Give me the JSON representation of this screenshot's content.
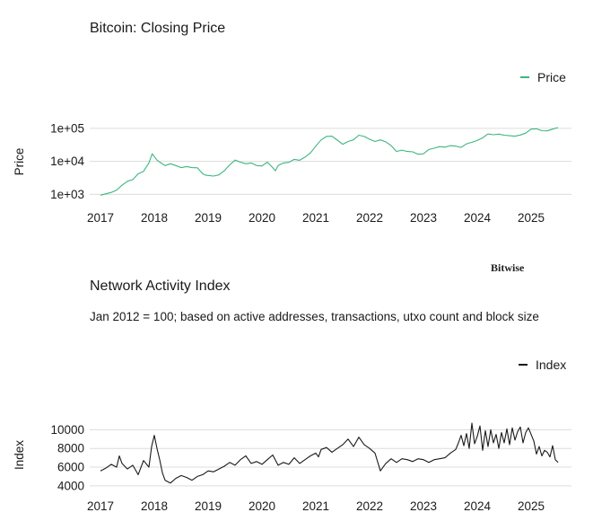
{
  "brand": "Bitwise",
  "chart_data": [
    {
      "type": "line",
      "title": "Bitcoin: Closing Price",
      "ylabel": "Price",
      "xlabel": "",
      "y_scale": "log",
      "ylim": [
        800,
        120000
      ],
      "xlim": [
        2016.8,
        2025.75
      ],
      "y_ticks": [
        1000,
        10000,
        100000
      ],
      "y_tick_labels": [
        "1e+03",
        "1e+04",
        "1e+05"
      ],
      "x_ticks": [
        2017,
        2018,
        2019,
        2020,
        2021,
        2022,
        2023,
        2024,
        2025
      ],
      "x_tick_labels": [
        "2017",
        "2018",
        "2019",
        "2020",
        "2021",
        "2022",
        "2023",
        "2024",
        "2025"
      ],
      "grid": "horizontal",
      "legend": "top-right",
      "series": [
        {
          "name": "Price",
          "color": "#3cb680",
          "x": [
            2017.0,
            2017.1,
            2017.2,
            2017.3,
            2017.4,
            2017.5,
            2017.6,
            2017.7,
            2017.8,
            2017.9,
            2017.96,
            2018.0,
            2018.05,
            2018.1,
            2018.2,
            2018.3,
            2018.4,
            2018.5,
            2018.6,
            2018.7,
            2018.8,
            2018.9,
            2018.96,
            2019.1,
            2019.2,
            2019.3,
            2019.4,
            2019.5,
            2019.6,
            2019.7,
            2019.8,
            2019.9,
            2020.0,
            2020.1,
            2020.2,
            2020.25,
            2020.3,
            2020.4,
            2020.5,
            2020.6,
            2020.7,
            2020.8,
            2020.9,
            2021.0,
            2021.1,
            2021.2,
            2021.3,
            2021.4,
            2021.5,
            2021.6,
            2021.7,
            2021.8,
            2021.9,
            2022.0,
            2022.1,
            2022.2,
            2022.3,
            2022.4,
            2022.5,
            2022.6,
            2022.7,
            2022.8,
            2022.9,
            2023.0,
            2023.1,
            2023.2,
            2023.3,
            2023.4,
            2023.5,
            2023.6,
            2023.7,
            2023.8,
            2023.9,
            2024.0,
            2024.1,
            2024.2,
            2024.3,
            2024.4,
            2024.5,
            2024.6,
            2024.7,
            2024.8,
            2024.9,
            2025.0,
            2025.1,
            2025.2,
            2025.3,
            2025.4,
            2025.5
          ],
          "values": [
            950,
            1050,
            1150,
            1350,
            1900,
            2500,
            2800,
            4200,
            5000,
            9000,
            17000,
            14000,
            11000,
            9500,
            7500,
            8500,
            7500,
            6500,
            7000,
            6500,
            6400,
            4200,
            3800,
            3600,
            3900,
            5200,
            7800,
            11000,
            9500,
            8500,
            9000,
            7500,
            7300,
            9500,
            6500,
            5200,
            7500,
            9000,
            9400,
            11500,
            10800,
            13500,
            18000,
            29000,
            45000,
            57000,
            58000,
            44000,
            33000,
            40000,
            45000,
            62000,
            57000,
            47000,
            40000,
            45000,
            39000,
            30000,
            20000,
            22000,
            20000,
            19500,
            16500,
            17000,
            23000,
            25000,
            28000,
            27000,
            30000,
            29000,
            26500,
            34000,
            38000,
            43000,
            52000,
            68000,
            64000,
            67000,
            62000,
            60000,
            58000,
            63000,
            72000,
            95000,
            97000,
            85000,
            84000,
            95000,
            106000
          ]
        }
      ]
    },
    {
      "type": "line",
      "title": "Network Activity Index",
      "subtitle": "Jan 2012 = 100; based on active addresses, transactions, utxo count and block size",
      "ylabel": "Index",
      "xlabel": "",
      "ylim": [
        3600,
        11000
      ],
      "xlim": [
        2016.8,
        2025.75
      ],
      "y_ticks": [
        4000,
        6000,
        8000,
        10000
      ],
      "y_tick_labels": [
        "4000",
        "6000",
        "8000",
        "10000"
      ],
      "x_ticks": [
        2017,
        2018,
        2019,
        2020,
        2021,
        2022,
        2023,
        2024,
        2025
      ],
      "x_tick_labels": [
        "2017",
        "2018",
        "2019",
        "2020",
        "2021",
        "2022",
        "2023",
        "2024",
        "2025"
      ],
      "grid": "horizontal",
      "legend": "top-right",
      "series": [
        {
          "name": "Index",
          "color": "#1a1a1a",
          "x": [
            2017.0,
            2017.1,
            2017.2,
            2017.3,
            2017.35,
            2017.4,
            2017.5,
            2017.6,
            2017.7,
            2017.8,
            2017.9,
            2017.95,
            2018.0,
            2018.05,
            2018.1,
            2018.15,
            2018.2,
            2018.3,
            2018.4,
            2018.5,
            2018.6,
            2018.7,
            2018.8,
            2018.9,
            2019.0,
            2019.1,
            2019.2,
            2019.3,
            2019.4,
            2019.5,
            2019.6,
            2019.7,
            2019.8,
            2019.9,
            2020.0,
            2020.1,
            2020.2,
            2020.3,
            2020.4,
            2020.5,
            2020.6,
            2020.7,
            2020.8,
            2020.9,
            2021.0,
            2021.05,
            2021.1,
            2021.2,
            2021.3,
            2021.4,
            2021.5,
            2021.6,
            2021.7,
            2021.8,
            2021.9,
            2022.0,
            2022.1,
            2022.2,
            2022.3,
            2022.4,
            2022.5,
            2022.6,
            2022.7,
            2022.8,
            2022.9,
            2023.0,
            2023.1,
            2023.2,
            2023.3,
            2023.4,
            2023.5,
            2023.6,
            2023.65,
            2023.7,
            2023.75,
            2023.8,
            2023.85,
            2023.9,
            2023.95,
            2024.0,
            2024.05,
            2024.1,
            2024.15,
            2024.2,
            2024.25,
            2024.3,
            2024.35,
            2024.4,
            2024.45,
            2024.5,
            2024.55,
            2024.6,
            2024.65,
            2024.7,
            2024.75,
            2024.8,
            2024.85,
            2024.9,
            2024.95,
            2025.0,
            2025.05,
            2025.1,
            2025.15,
            2025.2,
            2025.25,
            2025.3,
            2025.35,
            2025.4,
            2025.45,
            2025.5
          ],
          "values": [
            5600,
            5900,
            6300,
            6000,
            7200,
            6400,
            5800,
            6200,
            5200,
            6700,
            6000,
            8200,
            9400,
            8000,
            6800,
            5400,
            4600,
            4300,
            4800,
            5100,
            4900,
            4600,
            5000,
            5200,
            5600,
            5500,
            5800,
            6100,
            6500,
            6200,
            6800,
            7200,
            6400,
            6600,
            6300,
            6800,
            7300,
            6200,
            6500,
            6300,
            7000,
            6400,
            6800,
            7200,
            7500,
            7100,
            7900,
            8100,
            7600,
            8000,
            8400,
            9000,
            8200,
            9200,
            8400,
            8000,
            7500,
            5600,
            6400,
            6900,
            6500,
            6900,
            6800,
            6600,
            6900,
            6800,
            6500,
            6800,
            6900,
            7000,
            7500,
            7900,
            8600,
            9400,
            8300,
            9600,
            8000,
            10700,
            8500,
            9300,
            10400,
            7800,
            9900,
            8200,
            10000,
            8600,
            9500,
            8000,
            9700,
            8600,
            10100,
            8400,
            10200,
            8900,
            9800,
            10300,
            8600,
            9700,
            10200,
            9500,
            8800,
            7400,
            8200,
            7200,
            7800,
            7600,
            7100,
            8300,
            6800,
            6500
          ]
        }
      ]
    }
  ]
}
